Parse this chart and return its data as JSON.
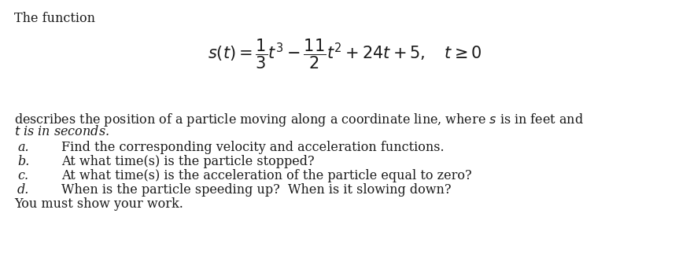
{
  "title_line": "The function",
  "formula": "$s(t) = \\dfrac{1}{3}t^3 - \\dfrac{11}{2}t^2 + 24t + 5, \\quad t \\geq 0$",
  "description": "describes the position of a particle moving along a coordinate line, where $s$ is in feet and",
  "description2": "$t$ is in seconds.",
  "items": [
    [
      "a.",
      "Find the corresponding velocity and acceleration functions."
    ],
    [
      "b.",
      "At what time(s) is the particle stopped?"
    ],
    [
      "c.",
      "At what time(s) is the acceleration of the particle equal to zero?"
    ],
    [
      "d.",
      "When is the particle speeding up?  When is it slowing down?"
    ]
  ],
  "footer": "You must show your work.",
  "bg_color": "#ffffff",
  "text_color": "#1a1a1a",
  "font_size_title": 11.5,
  "font_size_formula": 15,
  "font_size_body": 11.5
}
